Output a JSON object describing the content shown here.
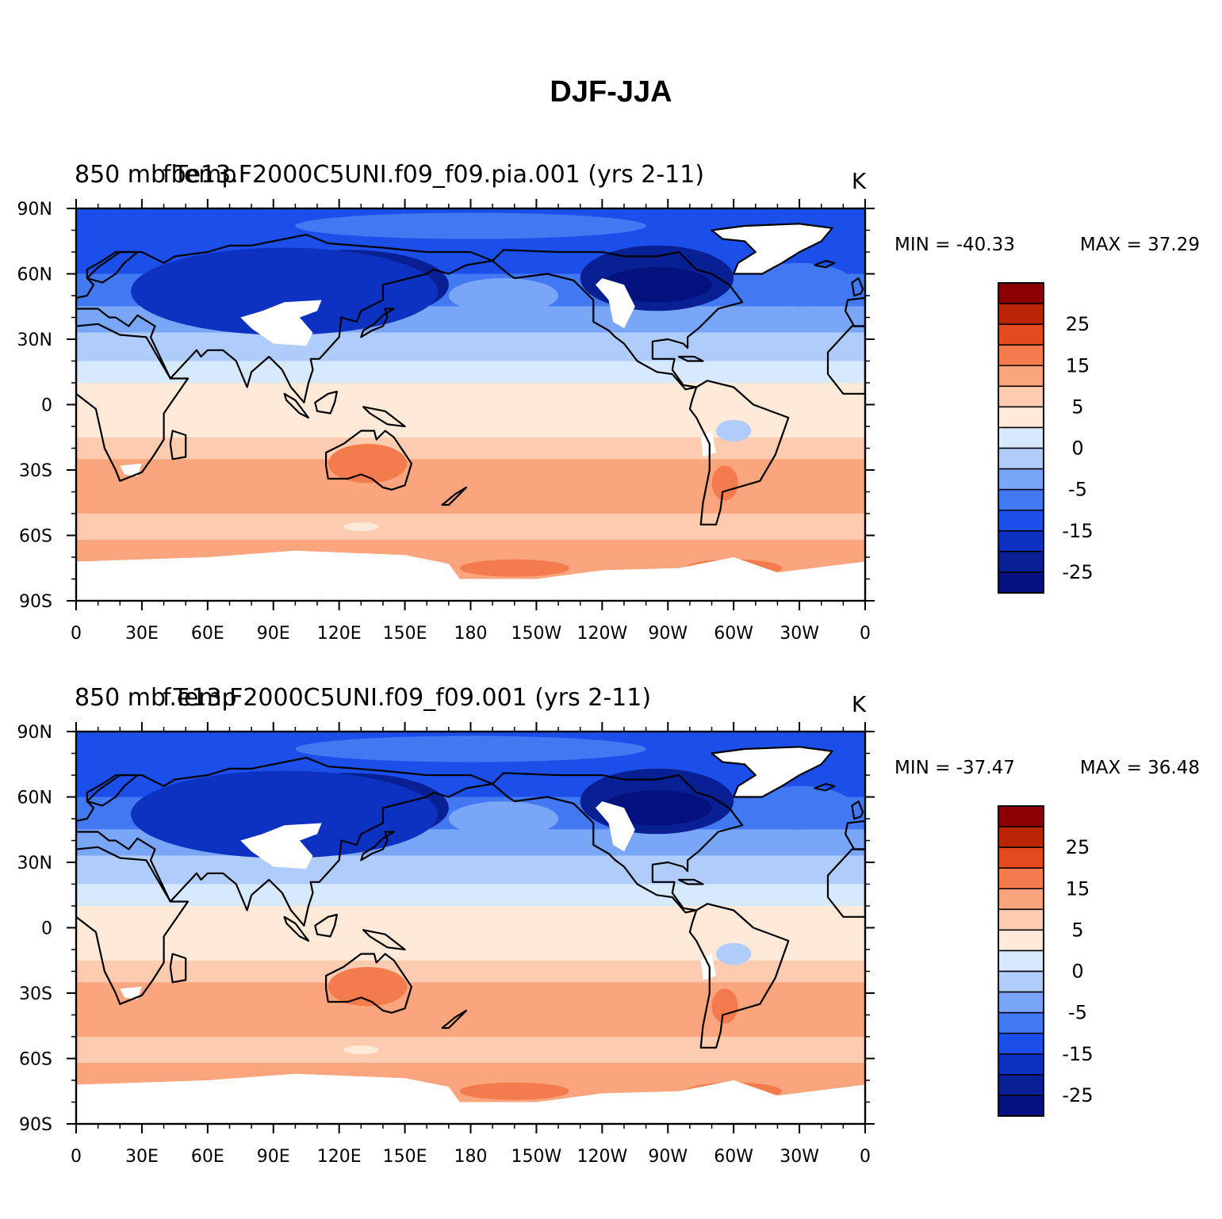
{
  "title": "DJF-JJA",
  "panels": [
    {
      "left_title": "850 mb Temp",
      "center_title": "fbe13.F2000C5UNI.f09_f09.pia.001 (yrs 2-11)",
      "units": "K",
      "min_label": "MIN = -40.33",
      "max_label": "MAX = 37.29",
      "min_value": -40.33,
      "max_value": 37.29
    },
    {
      "left_title": "850 mb Temp",
      "center_title": "f.e13.F2000C5UNI.f09_f09.001 (yrs 2-11)",
      "units": "K",
      "min_label": "MIN = -37.47",
      "max_label": "MAX = 36.48",
      "min_value": -37.47,
      "max_value": 36.48
    }
  ],
  "chart_data": {
    "type": "heatmap",
    "projection": "cylindrical equidistant",
    "lat_ticks": [
      "90N",
      "60N",
      "30N",
      "0",
      "30S",
      "60S",
      "90S"
    ],
    "lon_ticks": [
      "0",
      "30E",
      "60E",
      "90E",
      "120E",
      "150E",
      "180",
      "150W",
      "120W",
      "90W",
      "60W",
      "30W",
      "0"
    ],
    "lat_range": [
      -90,
      90
    ],
    "lon_range": [
      0,
      360
    ],
    "colorbar": {
      "labels": [
        "25",
        "15",
        "5",
        "0",
        "-5",
        "-15",
        "-25"
      ],
      "colors_top_to_bottom": [
        "#8B0000",
        "#BB2405",
        "#E34A1E",
        "#F47B4D",
        "#FBA57E",
        "#FDCBB0",
        "#FFE9D8",
        "#D6E9FE",
        "#B0CCFA",
        "#7AA6F8",
        "#4378F3",
        "#1C4FEA",
        "#0D32C2",
        "#082093",
        "#04117E"
      ],
      "levels": [
        -30,
        -25,
        -20,
        -15,
        -10,
        -5,
        -1,
        0,
        1,
        5,
        10,
        15,
        20,
        25,
        30
      ]
    }
  }
}
